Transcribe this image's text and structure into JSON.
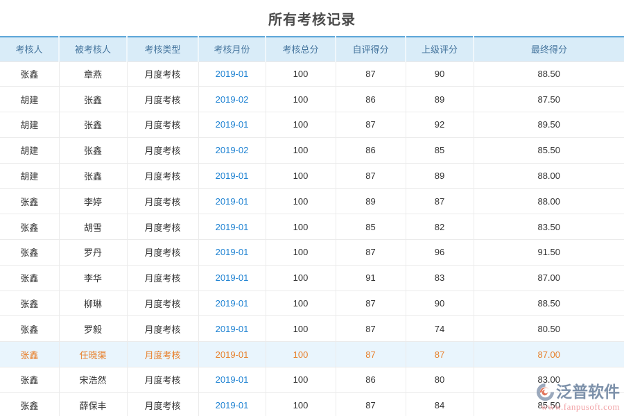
{
  "page": {
    "title": "所有考核记录"
  },
  "colors": {
    "table_top_border": "#5ea6d8",
    "header_bg": "#d9ecf8",
    "header_text": "#44749d",
    "link_blue": "#1e82d2",
    "highlight_bg": "#e9f5fd",
    "highlight_text": "#e87f2a",
    "body_text": "#333333",
    "watermark_brand": "#7388a3",
    "watermark_url": "#f2a2a6"
  },
  "table": {
    "headers": [
      "考核人",
      "被考核人",
      "考核类型",
      "考核月份",
      "考核总分",
      "自评得分",
      "上级评分",
      "最终得分"
    ],
    "highlighted_row_index": 11,
    "rows": [
      {
        "assessor": "张鑫",
        "assessee": "章燕",
        "type": "月度考核",
        "month": "2019-01",
        "total": "100",
        "self": "87",
        "superior": "90",
        "final": "88.50"
      },
      {
        "assessor": "胡建",
        "assessee": "张鑫",
        "type": "月度考核",
        "month": "2019-02",
        "total": "100",
        "self": "86",
        "superior": "89",
        "final": "87.50"
      },
      {
        "assessor": "胡建",
        "assessee": "张鑫",
        "type": "月度考核",
        "month": "2019-01",
        "total": "100",
        "self": "87",
        "superior": "92",
        "final": "89.50"
      },
      {
        "assessor": "胡建",
        "assessee": "张鑫",
        "type": "月度考核",
        "month": "2019-02",
        "total": "100",
        "self": "86",
        "superior": "85",
        "final": "85.50"
      },
      {
        "assessor": "胡建",
        "assessee": "张鑫",
        "type": "月度考核",
        "month": "2019-01",
        "total": "100",
        "self": "87",
        "superior": "89",
        "final": "88.00"
      },
      {
        "assessor": "张鑫",
        "assessee": "李婷",
        "type": "月度考核",
        "month": "2019-01",
        "total": "100",
        "self": "89",
        "superior": "87",
        "final": "88.00"
      },
      {
        "assessor": "张鑫",
        "assessee": "胡雪",
        "type": "月度考核",
        "month": "2019-01",
        "total": "100",
        "self": "85",
        "superior": "82",
        "final": "83.50"
      },
      {
        "assessor": "张鑫",
        "assessee": "罗丹",
        "type": "月度考核",
        "month": "2019-01",
        "total": "100",
        "self": "87",
        "superior": "96",
        "final": "91.50"
      },
      {
        "assessor": "张鑫",
        "assessee": "李华",
        "type": "月度考核",
        "month": "2019-01",
        "total": "100",
        "self": "91",
        "superior": "83",
        "final": "87.00"
      },
      {
        "assessor": "张鑫",
        "assessee": "柳琳",
        "type": "月度考核",
        "month": "2019-01",
        "total": "100",
        "self": "87",
        "superior": "90",
        "final": "88.50"
      },
      {
        "assessor": "张鑫",
        "assessee": "罗毅",
        "type": "月度考核",
        "month": "2019-01",
        "total": "100",
        "self": "87",
        "superior": "74",
        "final": "80.50"
      },
      {
        "assessor": "张鑫",
        "assessee": "任晓渠",
        "type": "月度考核",
        "month": "2019-01",
        "total": "100",
        "self": "87",
        "superior": "87",
        "final": "87.00"
      },
      {
        "assessor": "张鑫",
        "assessee": "宋浩然",
        "type": "月度考核",
        "month": "2019-01",
        "total": "100",
        "self": "86",
        "superior": "80",
        "final": "83.00"
      },
      {
        "assessor": "张鑫",
        "assessee": "薛保丰",
        "type": "月度考核",
        "month": "2019-01",
        "total": "100",
        "self": "87",
        "superior": "84",
        "final": "85.50"
      }
    ]
  },
  "watermark": {
    "brand": "泛普软件",
    "url": "www.fanpusoft.com",
    "logo_icon": "fanpu-logo-icon"
  }
}
